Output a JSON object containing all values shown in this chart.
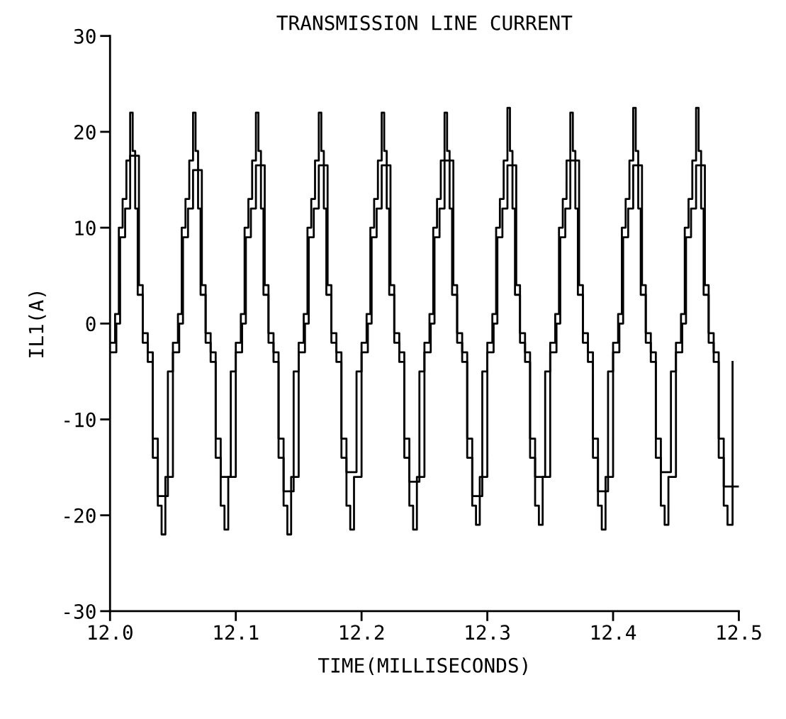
{
  "chart_data": {
    "type": "step",
    "title": "TRANSMISSION LINE CURRENT",
    "xlabel": "TIME(MILLISECONDS)",
    "ylabel": "IL1(A)",
    "xlim": [
      12.0,
      12.5
    ],
    "xticks": [
      {
        "value": 12.0,
        "label": "12.0"
      },
      12.1,
      12.2,
      12.3,
      12.4,
      12.5
    ],
    "ylim": [
      -30,
      30
    ],
    "yticks": [
      -30,
      -20,
      -10,
      0,
      10,
      20,
      30
    ],
    "grid": false,
    "marker": "none",
    "line_style": "solid",
    "series": [
      {
        "color": "#000000",
        "x": [
          12.0,
          12.004,
          12.007,
          12.01,
          12.013,
          12.016,
          12.018,
          12.02,
          12.022,
          12.026,
          12.03,
          12.034,
          12.038,
          12.041,
          12.044,
          12.05,
          12.054,
          12.057,
          12.06,
          12.063,
          12.066,
          12.068,
          12.07,
          12.072,
          12.076,
          12.08,
          12.084,
          12.088,
          12.091,
          12.094,
          12.1,
          12.104,
          12.107,
          12.11,
          12.113,
          12.116,
          12.118,
          12.12,
          12.122,
          12.126,
          12.13,
          12.134,
          12.138,
          12.141,
          12.144,
          12.15,
          12.154,
          12.157,
          12.16,
          12.163,
          12.166,
          12.168,
          12.17,
          12.172,
          12.176,
          12.18,
          12.184,
          12.188,
          12.191,
          12.194,
          12.2,
          12.204,
          12.207,
          12.21,
          12.213,
          12.216,
          12.218,
          12.22,
          12.222,
          12.226,
          12.23,
          12.234,
          12.238,
          12.241,
          12.244,
          12.25,
          12.254,
          12.257,
          12.26,
          12.263,
          12.266,
          12.268,
          12.27,
          12.272,
          12.276,
          12.28,
          12.284,
          12.288,
          12.291,
          12.294,
          12.3,
          12.304,
          12.307,
          12.31,
          12.313,
          12.316,
          12.318,
          12.32,
          12.322,
          12.326,
          12.33,
          12.334,
          12.338,
          12.341,
          12.344,
          12.35,
          12.354,
          12.357,
          12.36,
          12.363,
          12.366,
          12.368,
          12.37,
          12.372,
          12.376,
          12.38,
          12.384,
          12.388,
          12.391,
          12.394,
          12.4,
          12.404,
          12.407,
          12.41,
          12.413,
          12.416,
          12.418,
          12.42,
          12.422,
          12.426,
          12.43,
          12.434,
          12.438,
          12.441,
          12.444,
          12.45,
          12.454,
          12.457,
          12.46,
          12.463,
          12.466,
          12.468,
          12.47,
          12.472,
          12.476,
          12.48,
          12.484,
          12.488,
          12.491,
          12.495
        ],
        "values": [
          -2,
          1,
          10,
          13,
          17,
          22,
          18,
          12,
          3,
          -2,
          -4,
          -14,
          -19,
          -22,
          -16,
          -2,
          1,
          10,
          13,
          17,
          22,
          18,
          12,
          3,
          -2,
          -4,
          -14,
          -19,
          -21.5,
          -16,
          -2,
          1,
          10,
          13,
          17,
          22,
          18,
          12,
          3,
          -2,
          -4,
          -14,
          -19,
          -22,
          -16,
          -2,
          1,
          10,
          13,
          17,
          22,
          18,
          12,
          3,
          -2,
          -4,
          -14,
          -19,
          -21.5,
          -16,
          -2,
          1,
          10,
          13,
          17,
          22,
          18,
          12,
          3,
          -2,
          -4,
          -14,
          -19,
          -21.5,
          -16,
          -2,
          1,
          10,
          13,
          17,
          22,
          18,
          12,
          3,
          -2,
          -4,
          -14,
          -19,
          -21,
          -16,
          -2,
          1,
          10,
          13,
          17,
          22.5,
          18,
          12,
          3,
          -2,
          -4,
          -14,
          -19,
          -21,
          -16,
          -2,
          1,
          10,
          13,
          17,
          22,
          18,
          12,
          3,
          -2,
          -4,
          -14,
          -19,
          -21.5,
          -16,
          -2,
          1,
          10,
          13,
          17,
          22.5,
          18,
          12,
          3,
          -2,
          -4,
          -14,
          -19,
          -21,
          -16,
          -2,
          1,
          10,
          13,
          17,
          22.5,
          18,
          12,
          3,
          -2,
          -4,
          -14,
          -19,
          -21,
          -4
        ]
      },
      {
        "color": "#000000",
        "x": [
          12.0,
          12.005,
          12.008,
          12.012,
          12.016,
          12.023,
          12.026,
          12.03,
          12.034,
          12.038,
          12.046,
          12.05,
          12.055,
          12.058,
          12.062,
          12.066,
          12.073,
          12.076,
          12.08,
          12.084,
          12.088,
          12.096,
          12.1,
          12.105,
          12.108,
          12.112,
          12.116,
          12.123,
          12.126,
          12.13,
          12.134,
          12.138,
          12.146,
          12.15,
          12.155,
          12.158,
          12.162,
          12.166,
          12.173,
          12.176,
          12.18,
          12.184,
          12.188,
          12.196,
          12.2,
          12.205,
          12.208,
          12.212,
          12.216,
          12.223,
          12.226,
          12.23,
          12.234,
          12.238,
          12.246,
          12.25,
          12.255,
          12.258,
          12.262,
          12.266,
          12.273,
          12.276,
          12.28,
          12.284,
          12.288,
          12.296,
          12.3,
          12.305,
          12.308,
          12.312,
          12.316,
          12.323,
          12.326,
          12.33,
          12.334,
          12.338,
          12.346,
          12.35,
          12.355,
          12.358,
          12.362,
          12.366,
          12.373,
          12.376,
          12.38,
          12.384,
          12.388,
          12.396,
          12.4,
          12.405,
          12.408,
          12.412,
          12.416,
          12.423,
          12.426,
          12.43,
          12.434,
          12.438,
          12.446,
          12.45,
          12.455,
          12.458,
          12.462,
          12.466,
          12.473,
          12.476,
          12.48,
          12.484,
          12.488,
          12.5
        ],
        "values": [
          -3,
          0,
          9,
          12,
          17.5,
          4,
          -1,
          -3,
          -12,
          -18,
          -5,
          -3,
          0,
          9,
          12,
          16,
          4,
          -1,
          -3,
          -12,
          -16,
          -5,
          -3,
          0,
          9,
          12,
          16.5,
          4,
          -1,
          -3,
          -12,
          -17.5,
          -5,
          -3,
          0,
          9,
          12,
          16.5,
          4,
          -1,
          -3,
          -12,
          -15.5,
          -5,
          -3,
          0,
          9,
          12,
          16.5,
          4,
          -1,
          -3,
          -12,
          -16.5,
          -5,
          -3,
          0,
          9,
          12,
          17,
          4,
          -1,
          -3,
          -12,
          -18,
          -5,
          -3,
          0,
          9,
          12,
          16.5,
          4,
          -1,
          -3,
          -12,
          -16,
          -5,
          -3,
          0,
          9,
          12,
          17,
          4,
          -1,
          -3,
          -12,
          -17.5,
          -5,
          -3,
          0,
          9,
          12,
          16.5,
          4,
          -1,
          -3,
          -12,
          -15.5,
          -5,
          -3,
          0,
          9,
          12,
          16.5,
          4,
          -1,
          -3,
          -12,
          -17,
          -17
        ]
      }
    ]
  }
}
